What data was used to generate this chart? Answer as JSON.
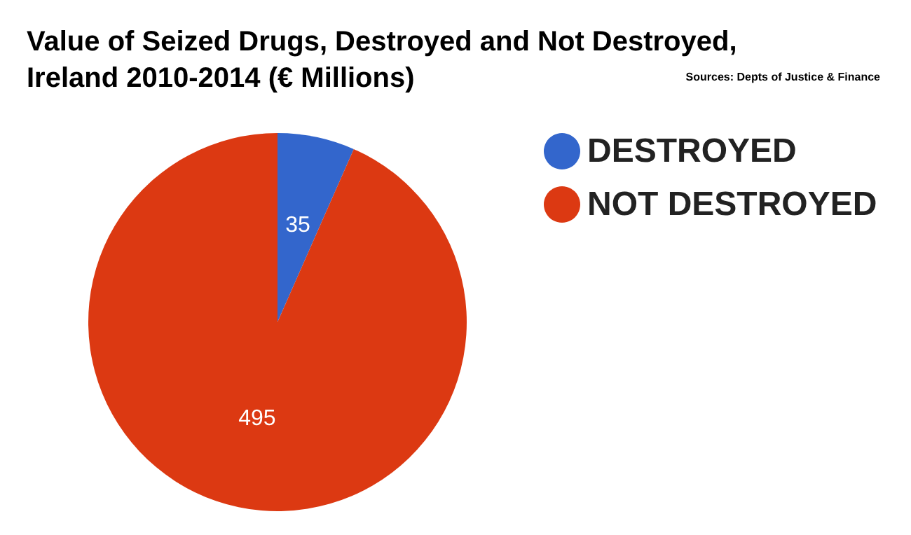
{
  "chart_data": {
    "type": "pie",
    "title": "Value of Seized Drugs, Destroyed and Not Destroyed, Ireland 2010-2014 (€ Millions)",
    "annotations": [
      "Sources: Depts of Justice & Finance"
    ],
    "categories": [
      "DESTROYED",
      "NOT DESTROYED"
    ],
    "values": [
      35,
      495
    ],
    "colors": [
      "#3366cc",
      "#dc3912"
    ],
    "data_labels": true,
    "legend": "right"
  }
}
